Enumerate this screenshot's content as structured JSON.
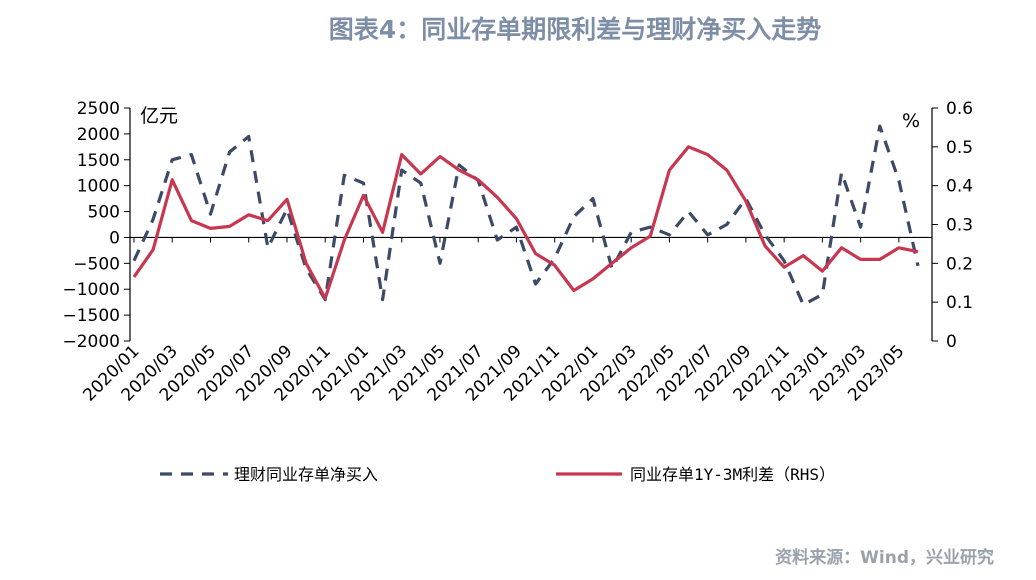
{
  "title": "图表4：同业存单期限利差与理财净买入走势",
  "source": "资料来源：Wind，兴业研究",
  "colors": {
    "series_left": "#3b4a66",
    "series_right": "#c8374f",
    "title": "#7d8ea6"
  },
  "chart_data": {
    "type": "line",
    "x_tick_labels": [
      "2020/01",
      "2020/03",
      "2020/05",
      "2020/07",
      "2020/09",
      "2020/11",
      "2021/01",
      "2021/03",
      "2021/05",
      "2021/07",
      "2021/09",
      "2021/11",
      "2022/01",
      "2022/03",
      "2022/05",
      "2022/07",
      "2022/09",
      "2022/11",
      "2023/01",
      "2023/03",
      "2023/05"
    ],
    "x": [
      "2020/01",
      "2020/02",
      "2020/03",
      "2020/04",
      "2020/05",
      "2020/06",
      "2020/07",
      "2020/08",
      "2020/09",
      "2020/10",
      "2020/11",
      "2020/12",
      "2021/01",
      "2021/02",
      "2021/03",
      "2021/04",
      "2021/05",
      "2021/06",
      "2021/07",
      "2021/08",
      "2021/09",
      "2021/10",
      "2021/11",
      "2021/12",
      "2022/01",
      "2022/02",
      "2022/03",
      "2022/04",
      "2022/05",
      "2022/06",
      "2022/07",
      "2022/08",
      "2022/09",
      "2022/10",
      "2022/11",
      "2022/12",
      "2023/01",
      "2023/02",
      "2023/03",
      "2023/04",
      "2023/05",
      "2023/06"
    ],
    "left_axis": {
      "unit": "亿元",
      "ylim": [
        -2000,
        2500
      ],
      "ticks": [
        "2500",
        "2000",
        "1500",
        "1000",
        "500",
        "0",
        "−500",
        "−1000",
        "−1500",
        "−2000"
      ],
      "tick_values": [
        2500,
        2000,
        1500,
        1000,
        500,
        0,
        -500,
        -1000,
        -1500,
        -2000
      ]
    },
    "right_axis": {
      "unit": "%",
      "ylim": [
        0,
        0.6
      ],
      "ticks": [
        "0.6",
        "0.5",
        "0.4",
        "0.3",
        "0.2",
        "0.1",
        "0"
      ],
      "tick_values": [
        0.6,
        0.5,
        0.4,
        0.3,
        0.2,
        0.1,
        0
      ]
    },
    "series": [
      {
        "name": "理财同业存单净买入",
        "axis": "left",
        "style": "dashed",
        "values": [
          -450,
          350,
          1500,
          1600,
          450,
          1650,
          1950,
          -200,
          550,
          -600,
          -1200,
          1200,
          1050,
          -1200,
          1300,
          1050,
          -500,
          1400,
          1100,
          -50,
          200,
          -900,
          -400,
          400,
          750,
          -600,
          100,
          200,
          50,
          500,
          50,
          250,
          750,
          50,
          -450,
          -1300,
          -1100,
          1250,
          200,
          2150,
          1100,
          -550
        ]
      },
      {
        "name": "同业存单1Y-3M利差（RHS）",
        "axis": "right",
        "style": "solid",
        "values": [
          0.165,
          0.235,
          0.415,
          0.31,
          0.29,
          0.295,
          0.325,
          0.31,
          0.365,
          0.2,
          0.11,
          0.26,
          0.375,
          0.28,
          0.48,
          0.43,
          0.475,
          0.44,
          0.415,
          0.37,
          0.315,
          0.225,
          0.195,
          0.13,
          0.16,
          0.2,
          0.24,
          0.27,
          0.44,
          0.5,
          0.48,
          0.44,
          0.36,
          0.245,
          0.19,
          0.22,
          0.18,
          0.24,
          0.21,
          0.21,
          0.24,
          0.23
        ]
      }
    ],
    "legend": {
      "placement": "bottom"
    },
    "grid": false
  }
}
